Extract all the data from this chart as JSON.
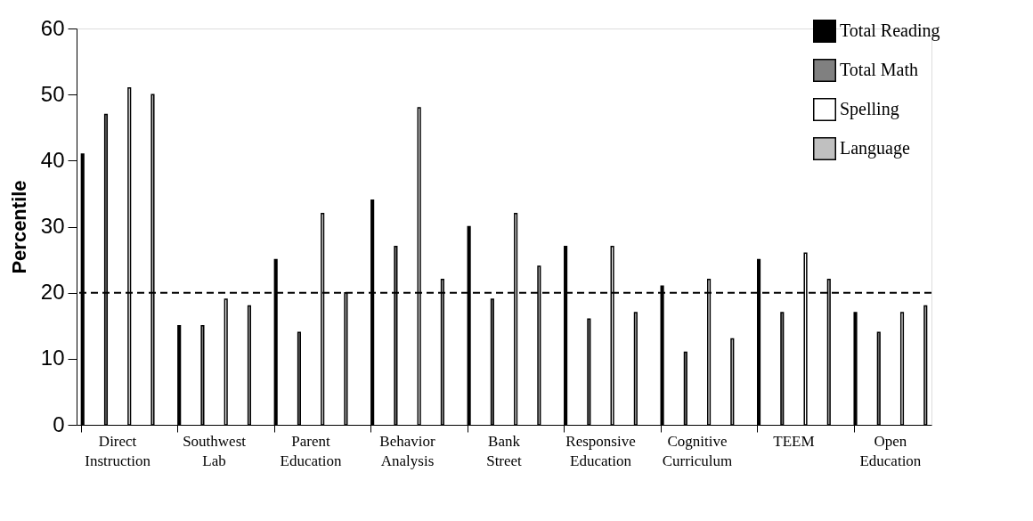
{
  "chart_data": {
    "type": "bar",
    "ylabel": "Percentile",
    "categories": [
      "Direct Instruction",
      "Southwest Lab",
      "Parent Education",
      "Behavior Analysis",
      "Bank Street",
      "Responsive Education",
      "Cognitive Curriculum",
      "TEEM",
      "Open Education"
    ],
    "series": [
      {
        "name": "Total Reading",
        "color": "#000000",
        "values": [
          41,
          15,
          25,
          34,
          30,
          27,
          21,
          25,
          17
        ]
      },
      {
        "name": "Total Math",
        "color": "#808080",
        "values": [
          47,
          15,
          14,
          27,
          19,
          16,
          11,
          17,
          14
        ]
      },
      {
        "name": "Spelling",
        "color": "#ffffff",
        "values": [
          51,
          19,
          32,
          48,
          32,
          27,
          22,
          26,
          17
        ]
      },
      {
        "name": "Language",
        "color": "#c0c0c0",
        "values": [
          50,
          18,
          20,
          22,
          24,
          17,
          13,
          22,
          18
        ]
      }
    ],
    "ylim": [
      0,
      60
    ],
    "yticks": [
      0,
      10,
      20,
      30,
      40,
      50,
      60
    ],
    "grid": false,
    "legend": "top right",
    "ref_lines": [
      {
        "axis": "y",
        "value": 20,
        "label": null,
        "line_style": "dashed",
        "color": "#000000"
      }
    ]
  }
}
